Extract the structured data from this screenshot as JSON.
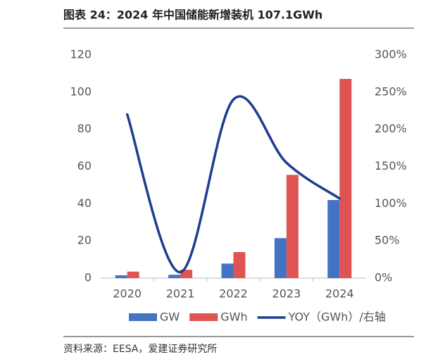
{
  "chart_data": {
    "type": "bar-line",
    "title": "图表 24：2024 年中国储能新增装机 107.1GWh",
    "source": "资料来源：EESA，爱建证券研究所",
    "categories": [
      "2020",
      "2021",
      "2022",
      "2023",
      "2024"
    ],
    "series": [
      {
        "name": "GW",
        "color": "#4472c4",
        "type": "bar",
        "values": [
          1.5,
          1.8,
          7.8,
          21.5,
          42
        ]
      },
      {
        "name": "GWh",
        "color": "#e05353",
        "type": "bar",
        "values": [
          3.5,
          4.5,
          14,
          55.5,
          107.1
        ]
      },
      {
        "name": "YOY（GWh）/右轴",
        "color": "#1f3d8f",
        "type": "line",
        "axis": "y2",
        "values": [
          220,
          8,
          240,
          155,
          107
        ]
      }
    ],
    "ylim": [
      0,
      120
    ],
    "yticks": [
      0,
      20,
      40,
      60,
      80,
      100,
      120
    ],
    "y2lim": [
      0,
      300
    ],
    "y2ticks": [
      {
        "value": 0,
        "label": "0%"
      },
      {
        "value": 50,
        "label": "50%"
      },
      {
        "value": 100,
        "label": "100%"
      },
      {
        "value": 150,
        "label": "150%"
      },
      {
        "value": 200,
        "label": "200%"
      },
      {
        "value": 250,
        "label": "250%"
      },
      {
        "value": 300,
        "label": "300%"
      }
    ]
  }
}
